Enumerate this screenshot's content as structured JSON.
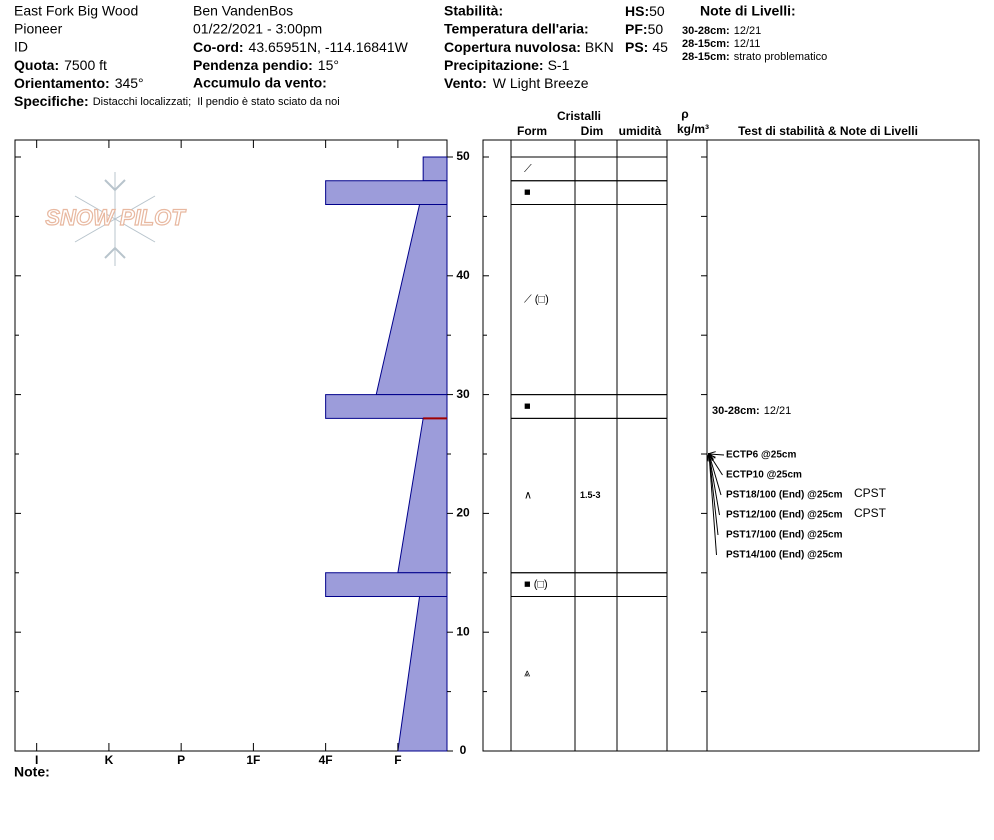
{
  "header": {
    "site": "East Fork Big Wood",
    "location": "Pioneer",
    "state": "ID",
    "elevation": {
      "label": "Quota:",
      "value": "7500 ft"
    },
    "aspect": {
      "label": "Orientamento:",
      "value": "345°"
    },
    "specifics": {
      "label": "Specifiche:",
      "value": "Distacchi localizzati;  Il pendio è stato sciato da noi"
    },
    "observer": "Ben VandenBos",
    "datetime": "01/22/2021 - 3:00pm",
    "coords": {
      "label": "Co-ord:",
      "value": "43.65951N, -114.16841W"
    },
    "slope": {
      "label": "Pendenza pendio:",
      "value": "15°"
    },
    "wind_loading": {
      "label": "Accumulo da vento:"
    },
    "stability": {
      "label": "Stabilità:"
    },
    "air_temp": {
      "label": "Temperatura dell'aria:"
    },
    "sky": {
      "label": "Copertura nuvolosa:",
      "value": "BKN"
    },
    "precip": {
      "label": "Precipitazione:",
      "value": "S-1"
    },
    "wind": {
      "label": "Vento:",
      "value": "W Light Breeze"
    },
    "hs": {
      "label": "HS:",
      "value": "50"
    },
    "pf": {
      "label": "PF:",
      "value": "50"
    },
    "ps": {
      "label": "PS:",
      "value": "45"
    },
    "layer_notes_title": "Note di Livelli:",
    "layer_notes": [
      {
        "range": "30-28cm:",
        "note": "12/21"
      },
      {
        "range": "28-15cm:",
        "note": "12/11"
      },
      {
        "range": "28-15cm:",
        "note": "strato problematico"
      }
    ]
  },
  "logo": "SNOW PILOT",
  "columns": {
    "crystals": "Cristalli",
    "form": "Form",
    "size": "Dim",
    "moisture": "umidità",
    "density": "ρ",
    "density_unit": "kg/m³",
    "tests": "Test di stabilità & Note di Livelli"
  },
  "footer": {
    "notes_label": "Note:"
  },
  "chart_data": {
    "type": "hardness-profile",
    "color": "#9c9cda",
    "critical_color": "#a00000",
    "critical_depth": 28,
    "xlim": [
      6.3,
      0.32
    ],
    "xticks": [
      {
        "value": 6,
        "label": "I"
      },
      {
        "value": 5,
        "label": "K"
      },
      {
        "value": 4,
        "label": "P"
      },
      {
        "value": 3,
        "label": "1F"
      },
      {
        "value": 2,
        "label": "4F"
      },
      {
        "value": 1,
        "label": "F"
      }
    ],
    "ylim": [
      0,
      51.43
    ],
    "yticks": [
      0,
      10,
      20,
      30,
      40,
      50
    ],
    "yminorticks": [
      5,
      15,
      25,
      35,
      45
    ],
    "layers": [
      {
        "top": 50,
        "bottom": 48,
        "hardness_top": 0.65,
        "hardness_bottom": 0.65,
        "form": "⟋"
      },
      {
        "top": 48,
        "bottom": 46,
        "hardness_top": 2,
        "hardness_bottom": 2,
        "form": "■"
      },
      {
        "top": 46,
        "bottom": 30,
        "hardness_top": 0.7,
        "hardness_bottom": 1.3,
        "form": "⟋ (□)"
      },
      {
        "top": 30,
        "bottom": 28,
        "hardness_top": 2,
        "hardness_bottom": 2,
        "form": "■"
      },
      {
        "top": 28,
        "bottom": 15,
        "hardness_top": 0.65,
        "hardness_bottom": 1,
        "form": "∧",
        "size": "1.5-3"
      },
      {
        "top": 15,
        "bottom": 13,
        "hardness_top": 2,
        "hardness_bottom": 2,
        "form": "■ (□)"
      },
      {
        "top": 13,
        "bottom": 0,
        "hardness_top": 0.7,
        "hardness_bottom": 1,
        "form": "⩓"
      }
    ],
    "tests": [
      {
        "label": "ECTP6 @25cm",
        "depth": 25
      },
      {
        "label": "ECTP10 @25cm",
        "depth": 25
      },
      {
        "label": "PST18/100 (End) @25cm",
        "depth": 25,
        "note": "CPST"
      },
      {
        "label": "PST12/100 (End) @25cm",
        "depth": 25,
        "note": "CPST"
      },
      {
        "label": "PST17/100 (End) @25cm",
        "depth": 25
      },
      {
        "label": "PST14/100 (End) @25cm",
        "depth": 25
      }
    ]
  }
}
